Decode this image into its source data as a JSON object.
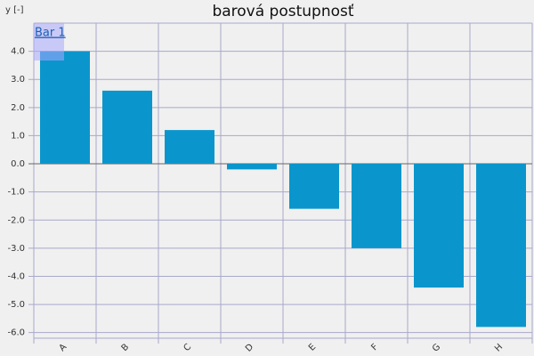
{
  "chart_data": {
    "type": "bar",
    "title": "barová postupnosť",
    "y_label": "y [-]",
    "categories": [
      "A",
      "B",
      "C",
      "D",
      "E",
      "F",
      "G",
      "H"
    ],
    "series": [
      {
        "name": "Bar 1",
        "color": "#0a96cc",
        "values": [
          4.0,
          2.6,
          1.2,
          -0.2,
          -1.6,
          -3.0,
          -4.4,
          -5.8
        ]
      }
    ],
    "ylim": [
      -6.2,
      5.0
    ],
    "yticks": [
      {
        "value": -6,
        "label": "-6.0"
      },
      {
        "value": -5,
        "label": "-5.0"
      },
      {
        "value": -4,
        "label": "-4.0"
      },
      {
        "value": -3,
        "label": "-3.0"
      },
      {
        "value": -2,
        "label": "-2.0"
      },
      {
        "value": -1,
        "label": "-1.0"
      },
      {
        "value": 0,
        "label": "0.0"
      },
      {
        "value": 1,
        "label": "1.0"
      },
      {
        "value": 2,
        "label": "2.0"
      },
      {
        "value": 3,
        "label": "3.0"
      },
      {
        "value": 4,
        "label": "4.0"
      }
    ],
    "grid": true,
    "legend": "top-left"
  }
}
